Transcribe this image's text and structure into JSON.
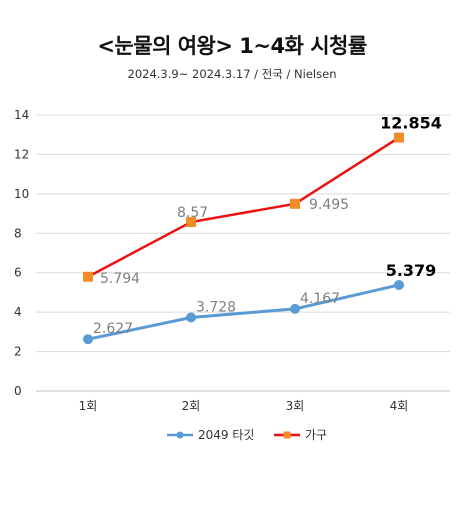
{
  "title": "<눈물의 여왕> 1~4화 시청률",
  "subtitle": "2024.3.9~ 2024.3.17 / 전국 / Nielsen",
  "colors": {
    "series_2049": "#5b9bd5",
    "series_household": "#ee1111",
    "household_marker": "#f28c28"
  },
  "chart_data": {
    "type": "line",
    "categories": [
      "1회",
      "2회",
      "3회",
      "4회"
    ],
    "series": [
      {
        "name": "2049 타깃",
        "values": [
          2.627,
          3.728,
          4.167,
          5.379
        ],
        "labels": [
          "2.627",
          "3.728",
          "4.167",
          "5.379"
        ]
      },
      {
        "name": "가구",
        "values": [
          5.794,
          8.57,
          9.495,
          12.854
        ],
        "labels": [
          "5.794",
          "8.57",
          "9.495",
          "12.854"
        ]
      }
    ],
    "yticks": [
      "0",
      "2",
      "4",
      "6",
      "8",
      "10",
      "12",
      "14"
    ],
    "ylim": [
      0,
      14
    ],
    "grid": true,
    "legend_position": "bottom"
  }
}
